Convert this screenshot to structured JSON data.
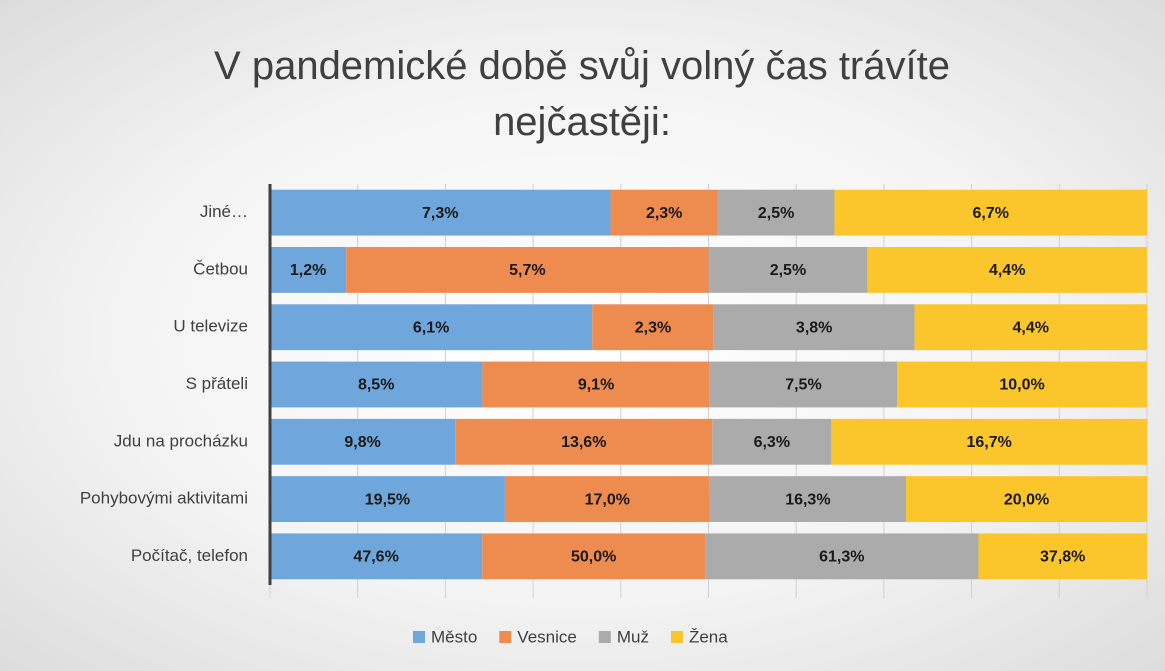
{
  "chart_data": {
    "type": "bar100h",
    "title": "V pandemické době svůj volný čas trávíte nejčastěji:",
    "categories": [
      "Jiné…",
      "Četbou",
      "U televize",
      "S přáteli",
      "Jdu na procházku",
      "Pohybovými aktivitami",
      "Počítač, telefon"
    ],
    "series": [
      {
        "name": "Město",
        "color": "#6fa6db",
        "values": [
          7.3,
          1.2,
          6.1,
          8.5,
          9.8,
          19.5,
          47.6
        ],
        "value_labels": [
          "7,3%",
          "1,2%",
          "6,1%",
          "8,5%",
          "9,8%",
          "19,5%",
          "47,6%"
        ]
      },
      {
        "name": "Vesnice",
        "color": "#ee8b4f",
        "values": [
          2.3,
          5.7,
          2.3,
          9.1,
          13.6,
          17.0,
          50.0
        ],
        "value_labels": [
          "2,3%",
          "5,7%",
          "2,3%",
          "9,1%",
          "13,6%",
          "17,0%",
          "50,0%"
        ]
      },
      {
        "name": "Muž",
        "color": "#ababab",
        "values": [
          2.5,
          2.5,
          3.8,
          7.5,
          6.3,
          16.3,
          61.3
        ],
        "value_labels": [
          "2,5%",
          "2,5%",
          "3,8%",
          "7,5%",
          "6,3%",
          "16,3%",
          "61,3%"
        ]
      },
      {
        "name": "Žena",
        "color": "#fbc52c",
        "values": [
          6.7,
          4.4,
          4.4,
          10.0,
          16.7,
          20.0,
          37.8
        ],
        "value_labels": [
          "6,7%",
          "4,4%",
          "4,4%",
          "10,0%",
          "16,7%",
          "20,0%",
          "37,8%"
        ]
      }
    ],
    "xlim": [
      0,
      100
    ],
    "xticks": [
      0,
      10,
      20,
      30,
      40,
      50,
      60,
      70,
      80,
      90,
      100
    ],
    "grid": true,
    "legend": "bottom"
  }
}
